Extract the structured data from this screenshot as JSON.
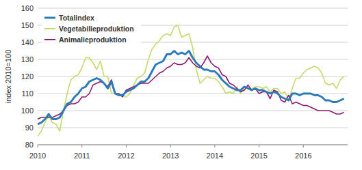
{
  "chart_data": {
    "type": "line",
    "y_label": "index 2010=100",
    "x": [
      2010,
      2010.083,
      2010.167,
      2010.25,
      2010.333,
      2010.417,
      2010.5,
      2010.583,
      2010.667,
      2010.75,
      2010.833,
      2010.917,
      2011,
      2011.083,
      2011.167,
      2011.25,
      2011.333,
      2011.417,
      2011.5,
      2011.583,
      2011.667,
      2011.75,
      2011.833,
      2011.917,
      2012,
      2012.083,
      2012.167,
      2012.25,
      2012.333,
      2012.417,
      2012.5,
      2012.583,
      2012.667,
      2012.75,
      2012.833,
      2012.917,
      2013,
      2013.083,
      2013.167,
      2013.25,
      2013.333,
      2013.417,
      2013.5,
      2013.583,
      2013.667,
      2013.75,
      2013.833,
      2013.917,
      2014,
      2014.083,
      2014.167,
      2014.25,
      2014.333,
      2014.417,
      2014.5,
      2014.583,
      2014.667,
      2014.75,
      2014.833,
      2014.917,
      2015,
      2015.083,
      2015.167,
      2015.25,
      2015.333,
      2015.417,
      2015.5,
      2015.583,
      2015.667,
      2015.75,
      2015.833,
      2015.917,
      2016,
      2016.083,
      2016.167,
      2016.25,
      2016.333,
      2016.417,
      2016.5,
      2016.583,
      2016.667,
      2016.75,
      2016.833,
      2016.917
    ],
    "series": [
      {
        "name": "Totalindex",
        "color": "#2b7bb9",
        "values": [
          92,
          93,
          95,
          98,
          95,
          95,
          96,
          100,
          104,
          105,
          108,
          110,
          113,
          114,
          117,
          118,
          119,
          118,
          116,
          113,
          117,
          110,
          109,
          109,
          111,
          112,
          113,
          115,
          117,
          117,
          119,
          123,
          127,
          128,
          129,
          133,
          133,
          135,
          133,
          134,
          133,
          135,
          131,
          128,
          126,
          124,
          124,
          123,
          123,
          121,
          118,
          116,
          114,
          113,
          112,
          112,
          114,
          113,
          112,
          113,
          112,
          112,
          111,
          110,
          111,
          110,
          108,
          107,
          106,
          110,
          110,
          109,
          110,
          110,
          110,
          109,
          109,
          108,
          106,
          106,
          105,
          105,
          106,
          107
        ]
      },
      {
        "name": "Vegetabilieproduktion",
        "color": "#c6d96e",
        "values": [
          85,
          88,
          93,
          97,
          93,
          92,
          88,
          100,
          110,
          118,
          120,
          121,
          125,
          131,
          131,
          128,
          124,
          129,
          120,
          120,
          110,
          110,
          109,
          109,
          108,
          110,
          115,
          119,
          120,
          122,
          130,
          136,
          139,
          141,
          144,
          145,
          144,
          149,
          150,
          143,
          144,
          145,
          137,
          124,
          116,
          118,
          120,
          119,
          119,
          117,
          114,
          110,
          111,
          110,
          114,
          110,
          114,
          113,
          113,
          114,
          114,
          113,
          114,
          111,
          113,
          113,
          110,
          111,
          106,
          113,
          119,
          119,
          122,
          124,
          125,
          126,
          125,
          122,
          116,
          115,
          116,
          113,
          118,
          120
        ]
      },
      {
        "name": "Animalieproduktion",
        "color": "#8e1c6e",
        "values": [
          95,
          96,
          96,
          96,
          96,
          97,
          98,
          100,
          103,
          104,
          104,
          105,
          108,
          108,
          110,
          115,
          116,
          117,
          116,
          114,
          118,
          110,
          110,
          108,
          112,
          113,
          114,
          115,
          116,
          116,
          116,
          118,
          120,
          122,
          123,
          125,
          126,
          128,
          127,
          127,
          128,
          131,
          128,
          126,
          125,
          128,
          132,
          128,
          126,
          125,
          121,
          120,
          116,
          115,
          113,
          111,
          112,
          115,
          112,
          113,
          110,
          111,
          111,
          107,
          112,
          111,
          106,
          105,
          109,
          104,
          105,
          104,
          103,
          103,
          102,
          101,
          100,
          100,
          100,
          100,
          99,
          98,
          98,
          99
        ]
      }
    ],
    "xlim": [
      2010,
      2017
    ],
    "xticks": [
      2010,
      2011,
      2012,
      2013,
      2014,
      2015,
      2016
    ],
    "ylim": [
      80,
      160
    ],
    "yticks": [
      80,
      90,
      100,
      110,
      120,
      130,
      140,
      150,
      160
    ],
    "grid": true,
    "legend": "upper left"
  }
}
